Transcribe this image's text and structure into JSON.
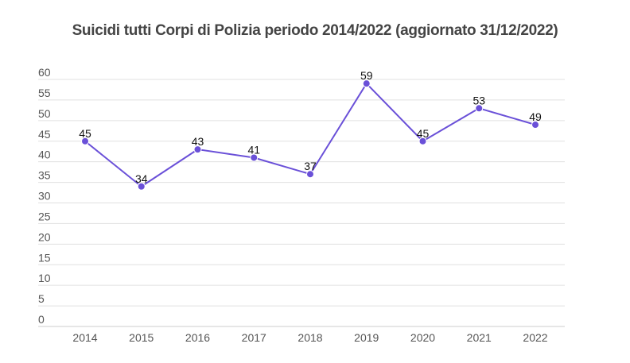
{
  "chart_data": {
    "type": "line",
    "title": "Suicidi tutti Corpi di Polizia periodo 2014/2022 (aggiornato  31/12/2022)",
    "xlabel": "",
    "ylabel": "",
    "categories": [
      "2014",
      "2015",
      "2016",
      "2017",
      "2018",
      "2019",
      "2020",
      "2021",
      "2022"
    ],
    "series": [
      {
        "name": "Suicidi",
        "values": [
          45,
          34,
          43,
          41,
          37,
          59,
          45,
          53,
          49
        ],
        "color": "#6a50d8"
      }
    ],
    "ylim": [
      0,
      60
    ],
    "yticks": [
      "0",
      "5",
      "10",
      "15",
      "20",
      "25",
      "30",
      "35",
      "40",
      "45",
      "50",
      "55",
      "60"
    ],
    "grid": true,
    "legend": "none",
    "data_labels": true
  }
}
